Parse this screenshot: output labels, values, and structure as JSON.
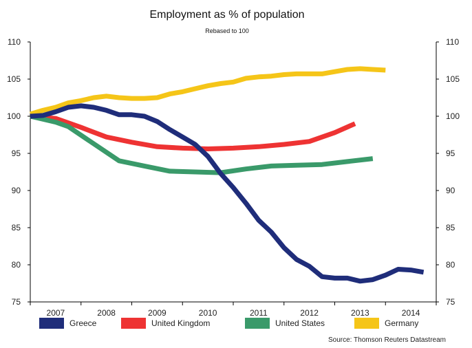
{
  "chart_data": {
    "type": "line",
    "title": "Employment as % of population",
    "subtitle": "Rebased to 100",
    "source": "Source: Thomson Reuters Datastream",
    "xlim": [
      2007.0,
      2015.0
    ],
    "ylim": [
      75,
      110
    ],
    "x_ticks": [
      2007,
      2008,
      2009,
      2010,
      2011,
      2012,
      2013,
      2014
    ],
    "y_ticks": [
      75,
      80,
      85,
      90,
      95,
      100,
      105,
      110
    ],
    "grid": false,
    "legend_position": "bottom",
    "series": [
      {
        "name": "Greece",
        "color": "#1f2d7a",
        "points": [
          [
            2007.0,
            100.0
          ],
          [
            2007.25,
            100.1
          ],
          [
            2007.5,
            100.6
          ],
          [
            2007.75,
            101.2
          ],
          [
            2008.0,
            101.4
          ],
          [
            2008.25,
            101.2
          ],
          [
            2008.5,
            100.8
          ],
          [
            2008.75,
            100.2
          ],
          [
            2009.0,
            100.2
          ],
          [
            2009.25,
            100.0
          ],
          [
            2009.5,
            99.3
          ],
          [
            2009.75,
            98.2
          ],
          [
            2010.0,
            97.2
          ],
          [
            2010.25,
            96.2
          ],
          [
            2010.5,
            94.6
          ],
          [
            2010.75,
            92.3
          ],
          [
            2011.0,
            90.4
          ],
          [
            2011.25,
            88.3
          ],
          [
            2011.5,
            86.0
          ],
          [
            2011.75,
            84.4
          ],
          [
            2012.0,
            82.3
          ],
          [
            2012.25,
            80.7
          ],
          [
            2012.5,
            79.8
          ],
          [
            2012.75,
            78.4
          ],
          [
            2013.0,
            78.2
          ],
          [
            2013.25,
            78.2
          ],
          [
            2013.5,
            77.8
          ],
          [
            2013.75,
            78.0
          ],
          [
            2014.0,
            78.6
          ],
          [
            2014.25,
            79.4
          ],
          [
            2014.5,
            79.3
          ],
          [
            2014.75,
            79.0
          ]
        ]
      },
      {
        "name": "United Kingdom",
        "color": "#ee3333",
        "points": [
          [
            2007.0,
            100.0
          ],
          [
            2007.5,
            99.7
          ],
          [
            2008.0,
            98.5
          ],
          [
            2008.5,
            97.2
          ],
          [
            2009.0,
            96.5
          ],
          [
            2009.5,
            95.9
          ],
          [
            2010.0,
            95.7
          ],
          [
            2010.5,
            95.6
          ],
          [
            2011.0,
            95.7
          ],
          [
            2011.5,
            95.9
          ],
          [
            2012.0,
            96.2
          ],
          [
            2012.5,
            96.6
          ],
          [
            2013.0,
            97.8
          ],
          [
            2013.4,
            99.0
          ]
        ]
      },
      {
        "name": "United States",
        "color": "#3a9a6a",
        "points": [
          [
            2007.0,
            100.0
          ],
          [
            2007.5,
            99.2
          ],
          [
            2007.75,
            98.6
          ],
          [
            2008.25,
            96.3
          ],
          [
            2008.75,
            94.0
          ],
          [
            2009.25,
            93.3
          ],
          [
            2009.75,
            92.6
          ],
          [
            2010.25,
            92.5
          ],
          [
            2010.75,
            92.4
          ],
          [
            2011.25,
            92.9
          ],
          [
            2011.75,
            93.3
          ],
          [
            2012.25,
            93.4
          ],
          [
            2012.75,
            93.5
          ],
          [
            2013.25,
            93.9
          ],
          [
            2013.75,
            94.3
          ]
        ]
      },
      {
        "name": "Germany",
        "color": "#f5c518",
        "points": [
          [
            2007.0,
            100.3
          ],
          [
            2007.25,
            100.8
          ],
          [
            2007.5,
            101.2
          ],
          [
            2007.75,
            101.8
          ],
          [
            2008.0,
            102.1
          ],
          [
            2008.25,
            102.5
          ],
          [
            2008.5,
            102.7
          ],
          [
            2008.75,
            102.5
          ],
          [
            2009.0,
            102.4
          ],
          [
            2009.25,
            102.4
          ],
          [
            2009.5,
            102.5
          ],
          [
            2009.75,
            103.0
          ],
          [
            2010.0,
            103.3
          ],
          [
            2010.25,
            103.7
          ],
          [
            2010.5,
            104.1
          ],
          [
            2010.75,
            104.4
          ],
          [
            2011.0,
            104.6
          ],
          [
            2011.25,
            105.1
          ],
          [
            2011.5,
            105.3
          ],
          [
            2011.75,
            105.4
          ],
          [
            2012.0,
            105.6
          ],
          [
            2012.25,
            105.7
          ],
          [
            2012.5,
            105.7
          ],
          [
            2012.75,
            105.7
          ],
          [
            2013.0,
            106.0
          ],
          [
            2013.25,
            106.3
          ],
          [
            2013.5,
            106.4
          ],
          [
            2013.75,
            106.3
          ],
          [
            2014.0,
            106.2
          ]
        ]
      }
    ]
  }
}
